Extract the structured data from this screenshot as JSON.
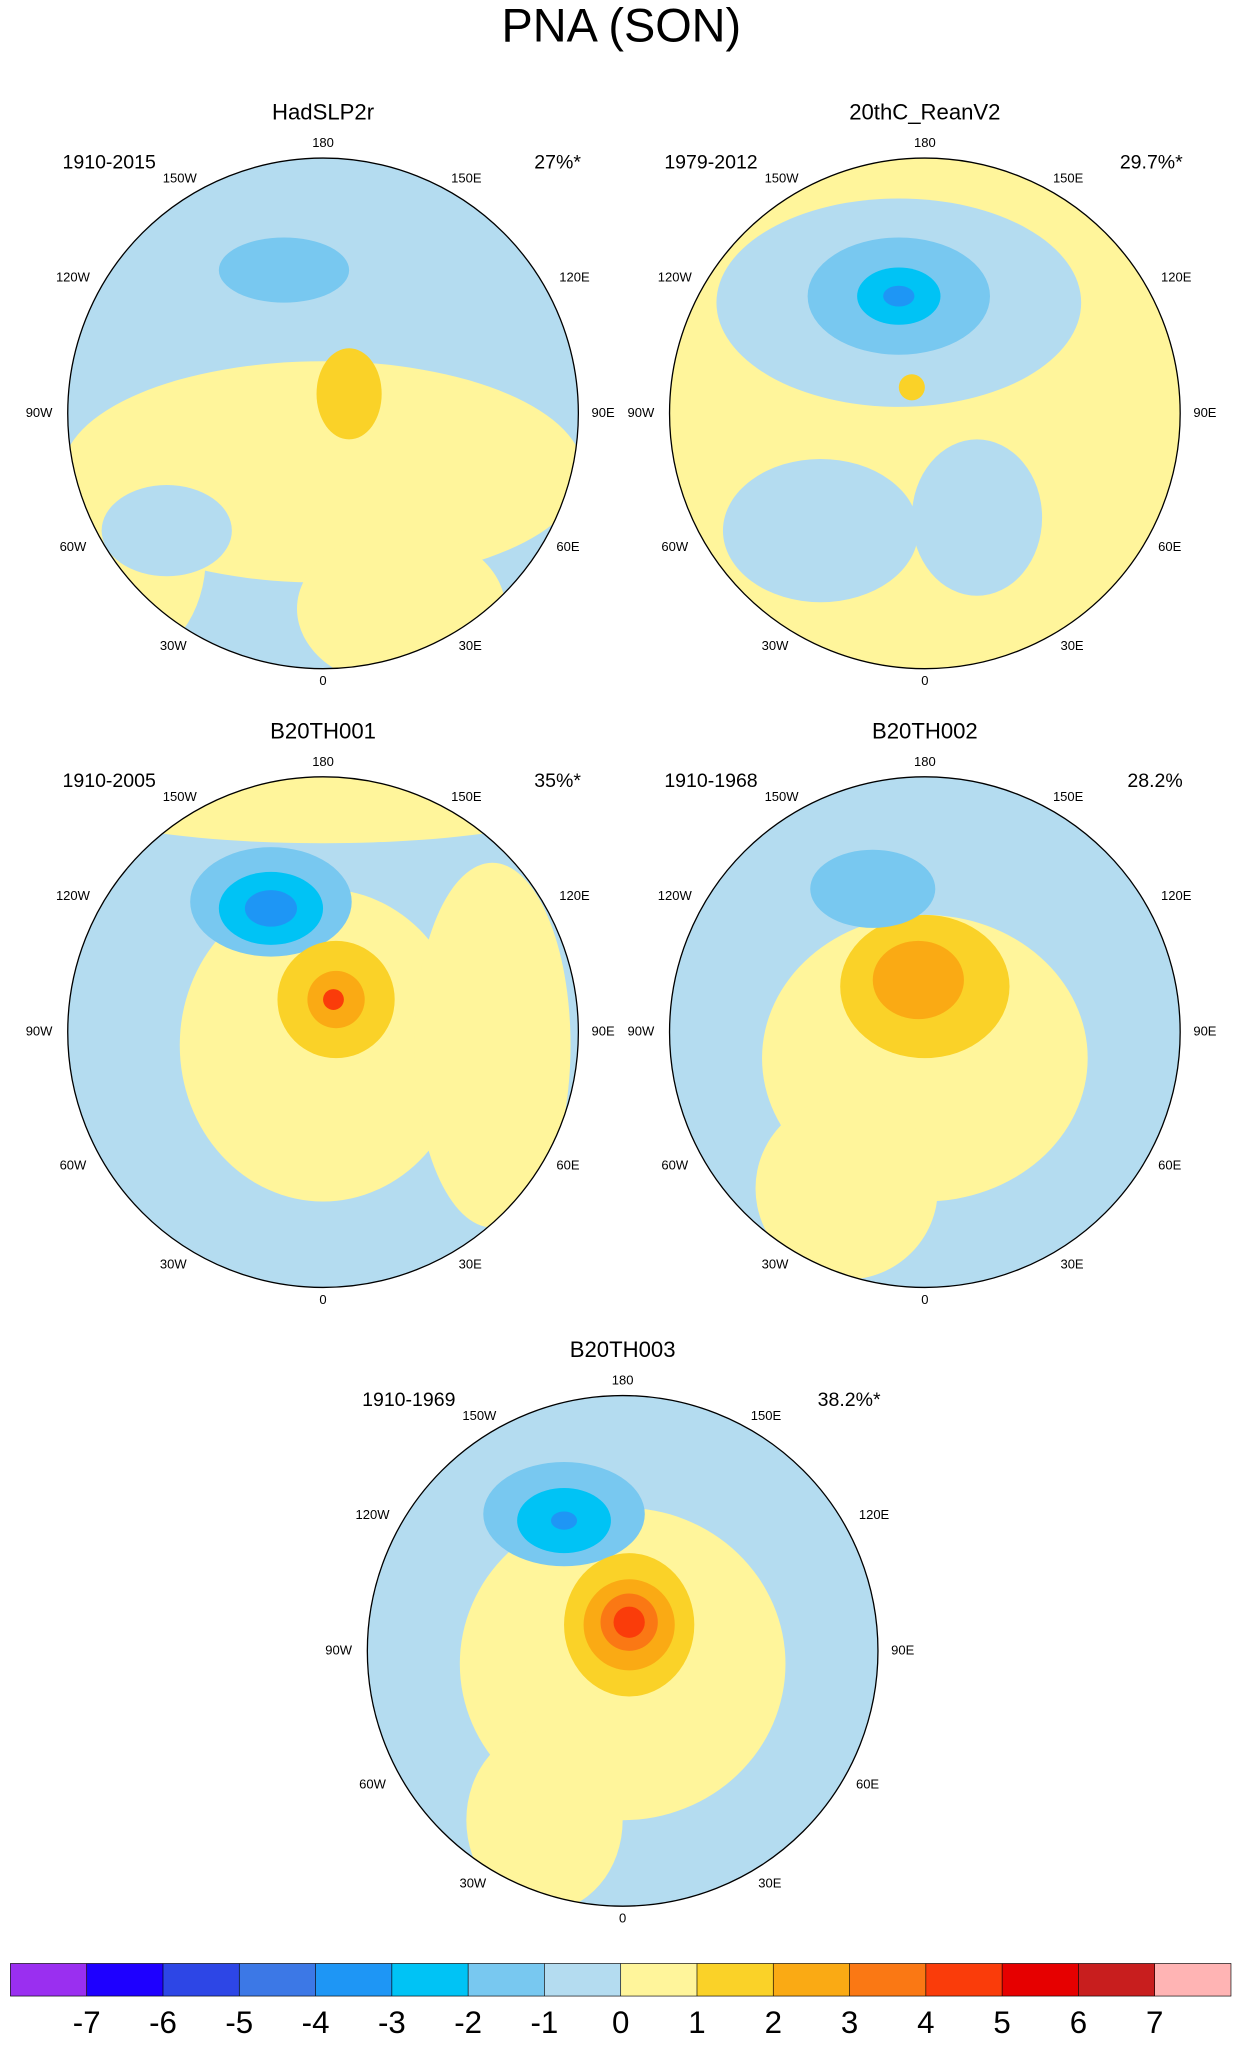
{
  "title": "PNA (SON)",
  "panels": [
    {
      "name": "HadSLP2r",
      "period": "1910-2015",
      "variance": "27%*"
    },
    {
      "name": "20thC_ReanV2",
      "period": "1979-2012",
      "variance": "29.7%*"
    },
    {
      "name": "B20TH001",
      "period": "1910-2005",
      "variance": "35%*"
    },
    {
      "name": "B20TH002",
      "period": "1910-1968",
      "variance": "28.2%"
    },
    {
      "name": "B20TH003",
      "period": "1910-1969",
      "variance": "38.2%*"
    }
  ],
  "longitude_labels": [
    "180",
    "150W",
    "150E",
    "120W",
    "120E",
    "90W",
    "90E",
    "60W",
    "60E",
    "30W",
    "30E",
    "0"
  ],
  "colorbar": {
    "colors": [
      "#9a2ff0",
      "#1e00ff",
      "#2d46e6",
      "#3c78e6",
      "#1e96f5",
      "#00c3f5",
      "#78c8f0",
      "#b4dcf0",
      "#fff59b",
      "#fad228",
      "#faaa14",
      "#fa7814",
      "#fa3c0a",
      "#e60000",
      "#c81e1e",
      "#ffb4b4"
    ],
    "labels": [
      -7,
      -6,
      -5,
      -4,
      -3,
      -2,
      -1,
      0,
      1,
      2,
      3,
      4,
      5,
      6,
      7
    ]
  }
}
